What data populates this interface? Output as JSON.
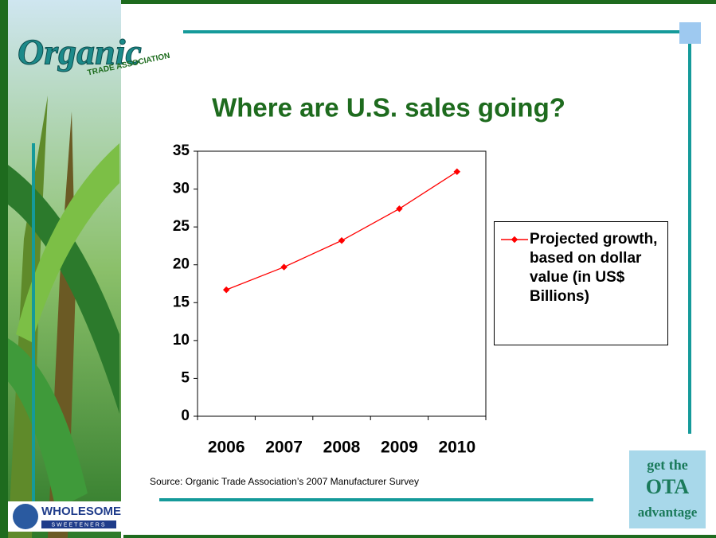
{
  "chart_data": {
    "type": "line",
    "title": "Where are U.S. sales going?",
    "categories": [
      "2006",
      "2007",
      "2008",
      "2009",
      "2010"
    ],
    "series": [
      {
        "name": "Projected growth, based on dollar value (in US$ Billions)",
        "color": "#ff0000",
        "values": [
          16.7,
          19.7,
          23.2,
          27.4,
          32.3
        ]
      }
    ],
    "ylim": [
      0,
      35
    ],
    "yticks": [
      0,
      5,
      10,
      15,
      20,
      25,
      30,
      35
    ],
    "grid": false,
    "legend": "right",
    "source": "Source: Organic Trade Association’s 2007 Manufacturer Survey"
  },
  "logos": {
    "organic": "Organic",
    "association": "TRADE ASSOCIATION",
    "wholesome": "WHOLESOME",
    "sweeteners": "SWEETENERS",
    "badge_top": "get the",
    "badge_mid": "OTA",
    "badge_bottom": "advantage"
  }
}
